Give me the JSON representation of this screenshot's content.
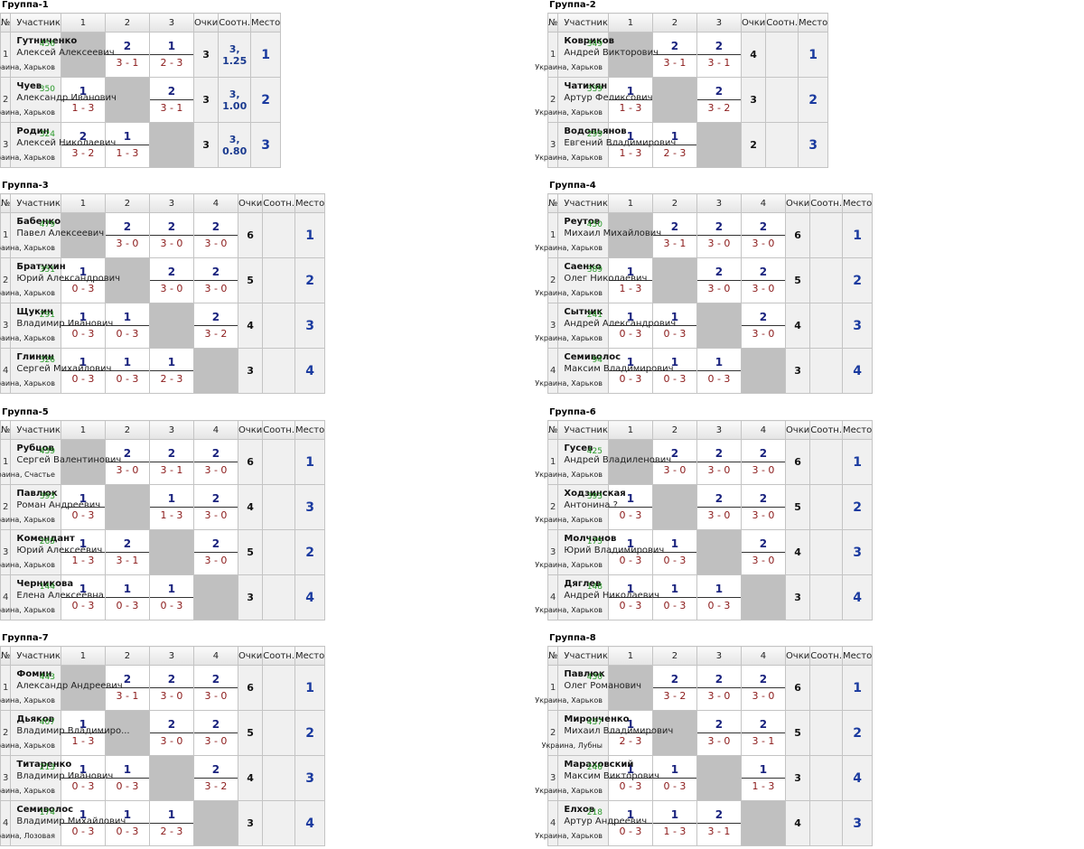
{
  "headers": {
    "num": "№",
    "player": "Участник",
    "points": "Очки",
    "ratio": "Соотн.",
    "place": "Место"
  },
  "groups": [
    {
      "title": "Группа-1",
      "cols": [
        "1",
        "2",
        "3"
      ],
      "players": [
        {
          "num": "1",
          "name": "Гутниченко",
          "full": "Алексей Алексеевич",
          "rating": "456",
          "loc": "Украина, Харьков",
          "results": [
            null,
            {
              "top": "2",
              "bot": "3 - 1"
            },
            {
              "top": "1",
              "bot": "2 - 3"
            }
          ],
          "points": "3",
          "ratio": "3, 1.25",
          "place": "1"
        },
        {
          "num": "2",
          "name": "Чуев",
          "full": "Александр Иванович",
          "rating": "350",
          "loc": "Украина, Харьков",
          "results": [
            {
              "top": "1",
              "bot": "1 - 3"
            },
            null,
            {
              "top": "2",
              "bot": "3 - 1"
            }
          ],
          "points": "3",
          "ratio": "3, 1.00",
          "place": "2"
        },
        {
          "num": "3",
          "name": "Родин",
          "full": "Алексей Николаевич",
          "rating": "324",
          "loc": "Украина, Харьков",
          "results": [
            {
              "top": "2",
              "bot": "3 - 2"
            },
            {
              "top": "1",
              "bot": "1 - 3"
            },
            null
          ],
          "points": "3",
          "ratio": "3, 0.80",
          "place": "3"
        }
      ]
    },
    {
      "title": "Группа-2",
      "cols": [
        "1",
        "2",
        "3"
      ],
      "players": [
        {
          "num": "1",
          "name": "Ковриков",
          "full": "Андрей Викторович",
          "rating": "349",
          "loc": "Украина, Харьков",
          "results": [
            null,
            {
              "top": "2",
              "bot": "3 - 1"
            },
            {
              "top": "2",
              "bot": "3 - 1"
            }
          ],
          "points": "4",
          "ratio": "",
          "place": "1"
        },
        {
          "num": "2",
          "name": "Чатикян",
          "full": "Артур Феликсович",
          "rating": "339",
          "loc": "Украина, Харьков",
          "results": [
            {
              "top": "1",
              "bot": "1 - 3"
            },
            null,
            {
              "top": "2",
              "bot": "3 - 2"
            }
          ],
          "points": "3",
          "ratio": "",
          "place": "2"
        },
        {
          "num": "3",
          "name": "Водопьянов",
          "full": "Евгений Владимирович",
          "rating": "299",
          "loc": "Украина, Харьков",
          "results": [
            {
              "top": "1",
              "bot": "1 - 3"
            },
            {
              "top": "1",
              "bot": "2 - 3"
            },
            null
          ],
          "points": "2",
          "ratio": "",
          "place": "3"
        }
      ]
    },
    {
      "title": "Группа-3",
      "cols": [
        "1",
        "2",
        "3",
        "4"
      ],
      "players": [
        {
          "num": "1",
          "name": "Бабенко",
          "full": "Павел Алексеевич",
          "rating": "479",
          "loc": "Украина, Харьков",
          "results": [
            null,
            {
              "top": "2",
              "bot": "3 - 0"
            },
            {
              "top": "2",
              "bot": "3 - 0"
            },
            {
              "top": "2",
              "bot": "3 - 0"
            }
          ],
          "points": "6",
          "ratio": "",
          "place": "1"
        },
        {
          "num": "2",
          "name": "Братухин",
          "full": "Юрий Александрович",
          "rating": "351",
          "loc": "Украина, Харьков",
          "results": [
            {
              "top": "1",
              "bot": "0 - 3"
            },
            null,
            {
              "top": "2",
              "bot": "3 - 0"
            },
            {
              "top": "2",
              "bot": "3 - 0"
            }
          ],
          "points": "5",
          "ratio": "",
          "place": "2"
        },
        {
          "num": "3",
          "name": "Щукин",
          "full": "Владимир Иванович",
          "rating": "291",
          "loc": "Украина, Харьков",
          "results": [
            {
              "top": "1",
              "bot": "0 - 3"
            },
            {
              "top": "1",
              "bot": "0 - 3"
            },
            null,
            {
              "top": "2",
              "bot": "3 - 2"
            }
          ],
          "points": "4",
          "ratio": "",
          "place": "3"
        },
        {
          "num": "4",
          "name": "Глинин",
          "full": "Сергей Михайлович",
          "rating": "326",
          "loc": "Украина, Харьков",
          "results": [
            {
              "top": "1",
              "bot": "0 - 3"
            },
            {
              "top": "1",
              "bot": "0 - 3"
            },
            {
              "top": "1",
              "bot": "2 - 3"
            },
            null
          ],
          "points": "3",
          "ratio": "",
          "place": "4"
        }
      ]
    },
    {
      "title": "Группа-4",
      "cols": [
        "1",
        "2",
        "3",
        "4"
      ],
      "players": [
        {
          "num": "1",
          "name": "Реутов",
          "full": "Михаил Михайлович",
          "rating": "450",
          "loc": "Украина, Харьков",
          "results": [
            null,
            {
              "top": "2",
              "bot": "3 - 1"
            },
            {
              "top": "2",
              "bot": "3 - 0"
            },
            {
              "top": "2",
              "bot": "3 - 0"
            }
          ],
          "points": "6",
          "ratio": "",
          "place": "1"
        },
        {
          "num": "2",
          "name": "Саенко",
          "full": "Олег Николаевич",
          "rating": "389",
          "loc": "Украина, Харьков",
          "results": [
            {
              "top": "1",
              "bot": "1 - 3"
            },
            null,
            {
              "top": "2",
              "bot": "3 - 0"
            },
            {
              "top": "2",
              "bot": "3 - 0"
            }
          ],
          "points": "5",
          "ratio": "",
          "place": "2"
        },
        {
          "num": "3",
          "name": "Сытник",
          "full": "Андрей Александрович",
          "rating": "241",
          "loc": "Украина, Харьков",
          "results": [
            {
              "top": "1",
              "bot": "0 - 3"
            },
            {
              "top": "1",
              "bot": "0 - 3"
            },
            null,
            {
              "top": "2",
              "bot": "3 - 0"
            }
          ],
          "points": "4",
          "ratio": "",
          "place": "3"
        },
        {
          "num": "4",
          "name": "Семиволос",
          "full": "Максим Владимирович",
          "rating": "94",
          "loc": "Украина, Харьков",
          "results": [
            {
              "top": "1",
              "bot": "0 - 3"
            },
            {
              "top": "1",
              "bot": "0 - 3"
            },
            {
              "top": "1",
              "bot": "0 - 3"
            },
            null
          ],
          "points": "3",
          "ratio": "",
          "place": "4"
        }
      ]
    },
    {
      "title": "Группа-5",
      "cols": [
        "1",
        "2",
        "3",
        "4"
      ],
      "players": [
        {
          "num": "1",
          "name": "Рубцов",
          "full": "Сергей Валентинович",
          "rating": "439",
          "loc": "Украина, Счастье",
          "results": [
            null,
            {
              "top": "2",
              "bot": "3 - 0"
            },
            {
              "top": "2",
              "bot": "3 - 1"
            },
            {
              "top": "2",
              "bot": "3 - 0"
            }
          ],
          "points": "6",
          "ratio": "",
          "place": "1"
        },
        {
          "num": "2",
          "name": "Павлюк",
          "full": "Роман Андреевич",
          "rating": "393",
          "loc": "Украина, Харьков",
          "results": [
            {
              "top": "1",
              "bot": "0 - 3"
            },
            null,
            {
              "top": "1",
              "bot": "1 - 3"
            },
            {
              "top": "2",
              "bot": "3 - 0"
            }
          ],
          "points": "4",
          "ratio": "",
          "place": "3"
        },
        {
          "num": "3",
          "name": "Комендант",
          "full": "Юрий Алексеевич",
          "rating": "265",
          "loc": "Украина, Харьков",
          "results": [
            {
              "top": "1",
              "bot": "1 - 3"
            },
            {
              "top": "2",
              "bot": "3 - 1"
            },
            null,
            {
              "top": "2",
              "bot": "3 - 0"
            }
          ],
          "points": "5",
          "ratio": "",
          "place": "2"
        },
        {
          "num": "4",
          "name": "Черникова",
          "full": "Елена Алексеевна",
          "rating": "144",
          "loc": "Украина, Харьков",
          "results": [
            {
              "top": "1",
              "bot": "0 - 3"
            },
            {
              "top": "1",
              "bot": "0 - 3"
            },
            {
              "top": "1",
              "bot": "0 - 3"
            },
            null
          ],
          "points": "3",
          "ratio": "",
          "place": "4"
        }
      ]
    },
    {
      "title": "Группа-6",
      "cols": [
        "1",
        "2",
        "3",
        "4"
      ],
      "players": [
        {
          "num": "1",
          "name": "Гусев",
          "full": "Андрей Владиленович",
          "rating": "425",
          "loc": "Украина, Харьков",
          "results": [
            null,
            {
              "top": "2",
              "bot": "3 - 0"
            },
            {
              "top": "2",
              "bot": "3 - 0"
            },
            {
              "top": "2",
              "bot": "3 - 0"
            }
          ],
          "points": "6",
          "ratio": "",
          "place": "1"
        },
        {
          "num": "2",
          "name": "Ходзинская",
          "full": "Антонина ?",
          "rating": "393",
          "loc": "Украина, Харьков",
          "results": [
            {
              "top": "1",
              "bot": "0 - 3"
            },
            null,
            {
              "top": "2",
              "bot": "3 - 0"
            },
            {
              "top": "2",
              "bot": "3 - 0"
            }
          ],
          "points": "5",
          "ratio": "",
          "place": "2"
        },
        {
          "num": "3",
          "name": "Молчанов",
          "full": "Юрий Владимирович",
          "rating": "175",
          "loc": "Украина, Харьков",
          "results": [
            {
              "top": "1",
              "bot": "0 - 3"
            },
            {
              "top": "1",
              "bot": "0 - 3"
            },
            null,
            {
              "top": "2",
              "bot": "3 - 0"
            }
          ],
          "points": "4",
          "ratio": "",
          "place": "3"
        },
        {
          "num": "4",
          "name": "Дяглев",
          "full": "Андрей Николаевич",
          "rating": "148",
          "loc": "Украина, Харьков",
          "results": [
            {
              "top": "1",
              "bot": "0 - 3"
            },
            {
              "top": "1",
              "bot": "0 - 3"
            },
            {
              "top": "1",
              "bot": "0 - 3"
            },
            null
          ],
          "points": "3",
          "ratio": "",
          "place": "4"
        }
      ]
    },
    {
      "title": "Группа-7",
      "cols": [
        "1",
        "2",
        "3",
        "4"
      ],
      "players": [
        {
          "num": "1",
          "name": "Фомин",
          "full": "Александр Андреевич",
          "rating": "443",
          "loc": "Украина, Харьков",
          "results": [
            null,
            {
              "top": "2",
              "bot": "3 - 1"
            },
            {
              "top": "2",
              "bot": "3 - 0"
            },
            {
              "top": "2",
              "bot": "3 - 0"
            }
          ],
          "points": "6",
          "ratio": "",
          "place": "1"
        },
        {
          "num": "2",
          "name": "Дьяков",
          "full": "Владимир Владимиро...",
          "rating": "407",
          "loc": "Украина, Харьков",
          "results": [
            {
              "top": "1",
              "bot": "1 - 3"
            },
            null,
            {
              "top": "2",
              "bot": "3 - 0"
            },
            {
              "top": "2",
              "bot": "3 - 0"
            }
          ],
          "points": "5",
          "ratio": "",
          "place": "2"
        },
        {
          "num": "3",
          "name": "Титаренко",
          "full": "Владимир Иванович",
          "rating": "213",
          "loc": "Украина, Харьков",
          "results": [
            {
              "top": "1",
              "bot": "0 - 3"
            },
            {
              "top": "1",
              "bot": "0 - 3"
            },
            null,
            {
              "top": "2",
              "bot": "3 - 2"
            }
          ],
          "points": "4",
          "ratio": "",
          "place": "3"
        },
        {
          "num": "4",
          "name": "Семиволос",
          "full": "Владимир Михайлович",
          "rating": "174",
          "loc": "Украина, Лозовая",
          "results": [
            {
              "top": "1",
              "bot": "0 - 3"
            },
            {
              "top": "1",
              "bot": "0 - 3"
            },
            {
              "top": "1",
              "bot": "2 - 3"
            },
            null
          ],
          "points": "3",
          "ratio": "",
          "place": "4"
        }
      ]
    },
    {
      "title": "Группа-8",
      "cols": [
        "1",
        "2",
        "3",
        "4"
      ],
      "players": [
        {
          "num": "1",
          "name": "Павлюк",
          "full": "Олег Романович",
          "rating": "430",
          "loc": "Украина, Харьков",
          "results": [
            null,
            {
              "top": "2",
              "bot": "3 - 2"
            },
            {
              "top": "2",
              "bot": "3 - 0"
            },
            {
              "top": "2",
              "bot": "3 - 0"
            }
          ],
          "points": "6",
          "ratio": "",
          "place": "1"
        },
        {
          "num": "2",
          "name": "Миронченко",
          "full": "Михаил Владимирович",
          "rating": "437",
          "loc": "Украина, Лубны",
          "results": [
            {
              "top": "1",
              "bot": "2 - 3"
            },
            null,
            {
              "top": "2",
              "bot": "3 - 0"
            },
            {
              "top": "2",
              "bot": "3 - 1"
            }
          ],
          "points": "5",
          "ratio": "",
          "place": "2"
        },
        {
          "num": "3",
          "name": "Мараховский",
          "full": "Максим Викторович",
          "rating": "246",
          "loc": "Украина, Харьков",
          "results": [
            {
              "top": "1",
              "bot": "0 - 3"
            },
            {
              "top": "1",
              "bot": "0 - 3"
            },
            null,
            {
              "top": "1",
              "bot": "1 - 3"
            }
          ],
          "points": "3",
          "ratio": "",
          "place": "4"
        },
        {
          "num": "4",
          "name": "Елхов",
          "full": "Артур Андреевич",
          "rating": "218",
          "loc": "Украина, Харьков",
          "results": [
            {
              "top": "1",
              "bot": "0 - 3"
            },
            {
              "top": "1",
              "bot": "1 - 3"
            },
            {
              "top": "2",
              "bot": "3 - 1"
            },
            null
          ],
          "points": "4",
          "ratio": "",
          "place": "3"
        }
      ]
    }
  ]
}
